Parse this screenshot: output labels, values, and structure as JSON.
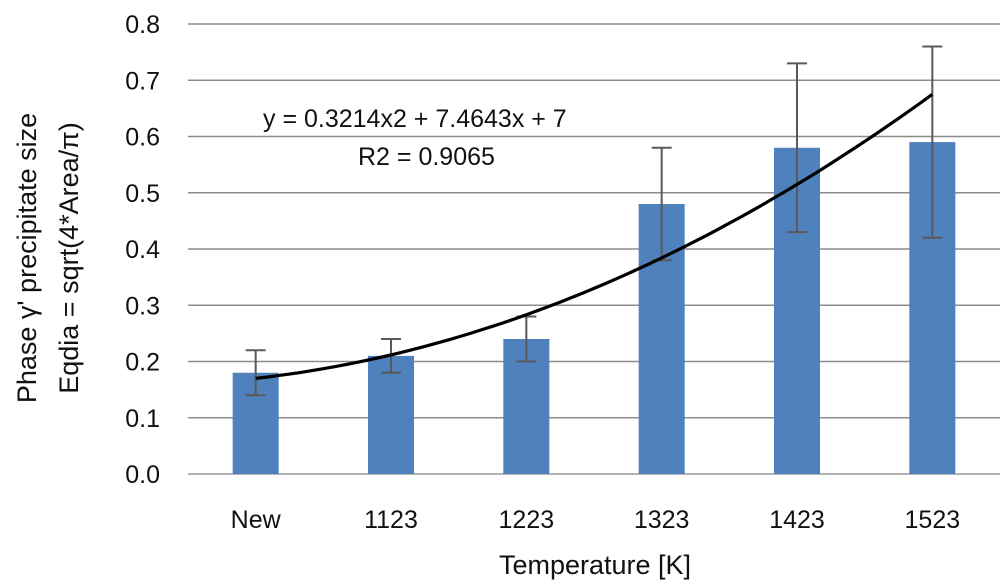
{
  "chart_data": {
    "type": "bar",
    "categories": [
      "New",
      "1123",
      "1223",
      "1323",
      "1423",
      "1523"
    ],
    "values": [
      0.18,
      0.21,
      0.24,
      0.48,
      0.58,
      0.59
    ],
    "error_low": [
      0.14,
      0.18,
      0.2,
      0.38,
      0.43,
      0.42
    ],
    "error_high": [
      0.22,
      0.24,
      0.28,
      0.58,
      0.73,
      0.76
    ],
    "trendline": {
      "type": "polynomial",
      "order": 2,
      "start_value": 0.17,
      "end_value": 0.675,
      "equation": "y = 0.3214x2 + 7.4643x + 7",
      "r2": "R2 = 0.9065"
    },
    "title": "",
    "xlabel": "Temperature [K]",
    "ylabel_line1": "Phase γ' precipitate size",
    "ylabel_line2": "Eqdia = sqrt(4*Area/π)",
    "ylim": [
      0,
      0.8
    ],
    "yticks": [
      "0.0",
      "0.1",
      "0.2",
      "0.3",
      "0.4",
      "0.5",
      "0.6",
      "0.7",
      "0.8"
    ],
    "grid": true,
    "legend": "none",
    "bar_color": "#4f81bd",
    "trend_color": "#000000",
    "error_bar_color": "#595959"
  }
}
